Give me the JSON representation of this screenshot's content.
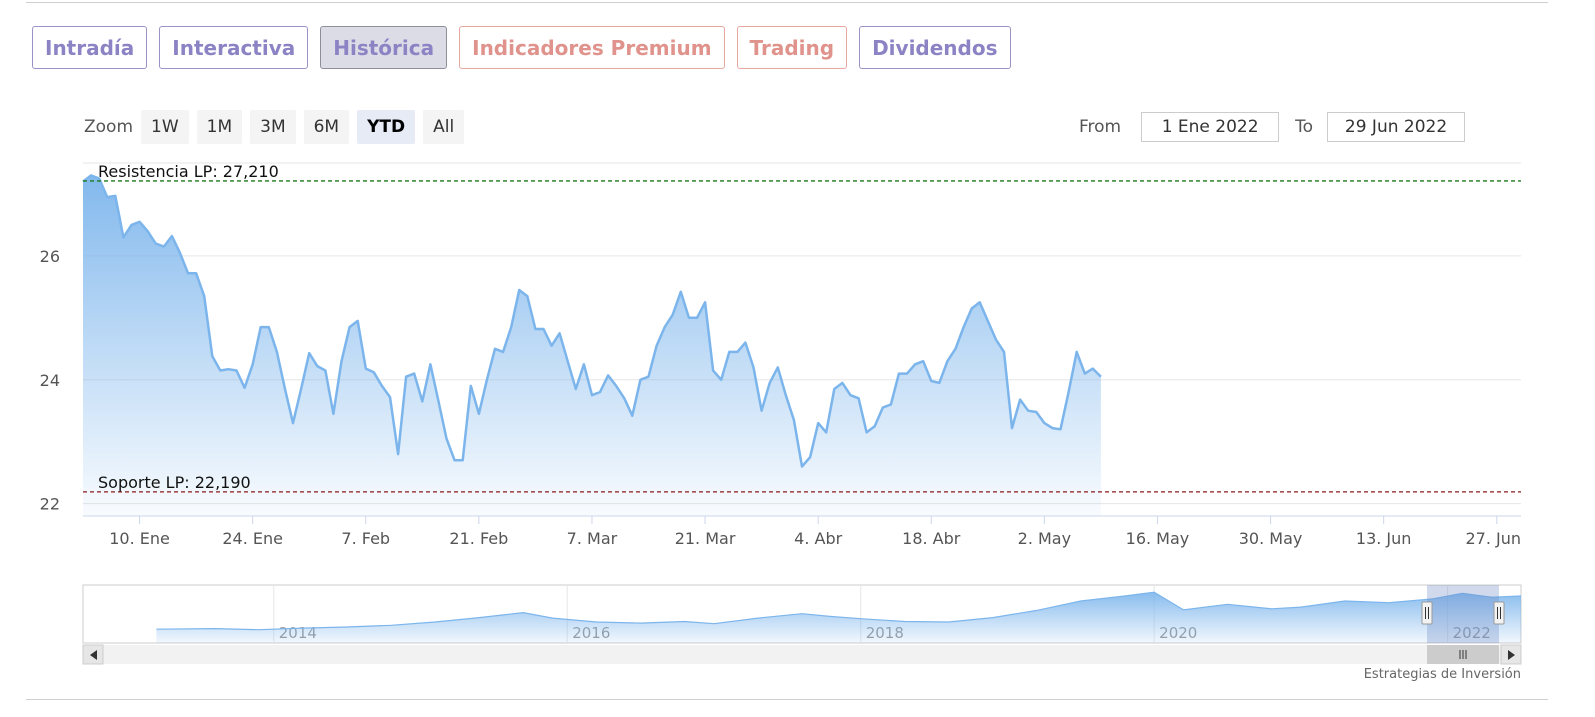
{
  "tabs": [
    {
      "label": "Intradía",
      "color": "purple",
      "active": false
    },
    {
      "label": "Interactiva",
      "color": "purple",
      "active": false
    },
    {
      "label": "Histórica",
      "color": "purple",
      "active": true
    },
    {
      "label": "Indicadores Premium",
      "color": "salmon",
      "active": false
    },
    {
      "label": "Trading",
      "color": "salmon",
      "active": false
    },
    {
      "label": "Dividendos",
      "color": "purple",
      "active": false
    }
  ],
  "zoom": {
    "label": "Zoom",
    "buttons": [
      "1W",
      "1M",
      "3M",
      "6M",
      "YTD",
      "All"
    ],
    "active": "YTD"
  },
  "range": {
    "from_label": "From",
    "from_value": "1 Ene 2022",
    "to_label": "To",
    "to_value": "29 Jun 2022"
  },
  "credit": "Estrategias de Inversión",
  "colors": {
    "line": "#7cb5ec",
    "resistance": "#1a7a1a",
    "support": "#8b1a1a",
    "tab_purple": "#8b83c4",
    "tab_salmon": "#e0938c"
  },
  "chart_data": {
    "type": "area",
    "title": "",
    "ylim": [
      21.8,
      27.5
    ],
    "yticks": [
      22,
      24,
      26
    ],
    "xticks": [
      {
        "x": 9,
        "label": "10. Ene"
      },
      {
        "x": 23,
        "label": "24. Ene"
      },
      {
        "x": 37,
        "label": "7. Feb"
      },
      {
        "x": 51,
        "label": "21. Feb"
      },
      {
        "x": 65,
        "label": "7. Mar"
      },
      {
        "x": 79,
        "label": "21. Mar"
      },
      {
        "x": 93,
        "label": "4. Abr"
      },
      {
        "x": 107,
        "label": "18. Abr"
      },
      {
        "x": 121,
        "label": "2. May"
      },
      {
        "x": 135,
        "label": "16. May"
      },
      {
        "x": 149,
        "label": "30. May"
      },
      {
        "x": 163,
        "label": "13. Jun"
      },
      {
        "x": 177,
        "label": "27. Jun"
      }
    ],
    "x_domain": [
      2,
      180
    ],
    "series": [
      {
        "points": [
          [
            2,
            27.2
          ],
          [
            3,
            27.3
          ],
          [
            4,
            27.25
          ],
          [
            5,
            26.95
          ],
          [
            6,
            26.97
          ],
          [
            7,
            26.3
          ],
          [
            8,
            26.5
          ],
          [
            9,
            26.55
          ],
          [
            10,
            26.4
          ],
          [
            11,
            26.2
          ],
          [
            12,
            26.15
          ],
          [
            13,
            26.32
          ],
          [
            14,
            26.05
          ],
          [
            15,
            25.72
          ],
          [
            16,
            25.72
          ],
          [
            17,
            25.35
          ],
          [
            18,
            24.38
          ],
          [
            19,
            24.15
          ],
          [
            20,
            24.17
          ],
          [
            21,
            24.15
          ],
          [
            22,
            23.87
          ],
          [
            23,
            24.25
          ],
          [
            24,
            24.85
          ],
          [
            25,
            24.85
          ],
          [
            26,
            24.45
          ],
          [
            27,
            23.85
          ],
          [
            28,
            23.3
          ],
          [
            29,
            23.85
          ],
          [
            30,
            24.43
          ],
          [
            31,
            24.22
          ],
          [
            32,
            24.15
          ],
          [
            33,
            23.45
          ],
          [
            34,
            24.3
          ],
          [
            35,
            24.85
          ],
          [
            36,
            24.95
          ],
          [
            37,
            24.18
          ],
          [
            38,
            24.12
          ],
          [
            39,
            23.9
          ],
          [
            40,
            23.72
          ],
          [
            41,
            22.8
          ],
          [
            42,
            24.05
          ],
          [
            43,
            24.1
          ],
          [
            44,
            23.65
          ],
          [
            45,
            24.25
          ],
          [
            46,
            23.65
          ],
          [
            47,
            23.05
          ],
          [
            48,
            22.7
          ],
          [
            49,
            22.7
          ],
          [
            50,
            23.9
          ],
          [
            51,
            23.45
          ],
          [
            52,
            24.0
          ],
          [
            53,
            24.5
          ],
          [
            54,
            24.45
          ],
          [
            55,
            24.85
          ],
          [
            56,
            25.45
          ],
          [
            57,
            25.35
          ],
          [
            58,
            24.82
          ],
          [
            59,
            24.82
          ],
          [
            60,
            24.55
          ],
          [
            61,
            24.75
          ],
          [
            62,
            24.3
          ],
          [
            63,
            23.85
          ],
          [
            64,
            24.25
          ],
          [
            65,
            23.75
          ],
          [
            66,
            23.8
          ],
          [
            67,
            24.07
          ],
          [
            68,
            23.9
          ],
          [
            69,
            23.7
          ],
          [
            70,
            23.42
          ],
          [
            71,
            24.0
          ],
          [
            72,
            24.05
          ],
          [
            73,
            24.55
          ],
          [
            74,
            24.85
          ],
          [
            75,
            25.05
          ],
          [
            76,
            25.42
          ],
          [
            77,
            25.0
          ],
          [
            78,
            25.0
          ],
          [
            79,
            25.25
          ],
          [
            80,
            24.15
          ],
          [
            81,
            24.0
          ],
          [
            82,
            24.45
          ],
          [
            83,
            24.45
          ],
          [
            84,
            24.6
          ],
          [
            85,
            24.2
          ],
          [
            86,
            23.5
          ],
          [
            87,
            23.95
          ],
          [
            88,
            24.2
          ],
          [
            89,
            23.75
          ],
          [
            90,
            23.35
          ],
          [
            91,
            22.6
          ],
          [
            92,
            22.75
          ],
          [
            93,
            23.3
          ],
          [
            94,
            23.15
          ],
          [
            95,
            23.85
          ],
          [
            96,
            23.95
          ],
          [
            97,
            23.75
          ],
          [
            98,
            23.7
          ],
          [
            99,
            23.15
          ],
          [
            100,
            23.25
          ],
          [
            101,
            23.55
          ],
          [
            102,
            23.6
          ],
          [
            103,
            24.1
          ],
          [
            104,
            24.1
          ],
          [
            105,
            24.25
          ],
          [
            106,
            24.3
          ],
          [
            107,
            23.98
          ],
          [
            108,
            23.95
          ],
          [
            109,
            24.3
          ],
          [
            110,
            24.5
          ],
          [
            111,
            24.85
          ],
          [
            112,
            25.15
          ],
          [
            113,
            25.25
          ],
          [
            114,
            24.95
          ],
          [
            115,
            24.65
          ],
          [
            116,
            24.45
          ],
          [
            117,
            23.22
          ],
          [
            118,
            23.68
          ],
          [
            119,
            23.5
          ],
          [
            120,
            23.48
          ],
          [
            121,
            23.3
          ],
          [
            122,
            23.22
          ],
          [
            123,
            23.2
          ],
          [
            124,
            23.8
          ],
          [
            125,
            24.45
          ],
          [
            126,
            24.1
          ],
          [
            127,
            24.18
          ],
          [
            128,
            24.05
          ]
        ]
      }
    ],
    "resistance": {
      "label": "Resistencia LP: 27,210",
      "value": 27.21
    },
    "support": {
      "label": "Soporte LP: 22,190",
      "value": 22.19
    },
    "navigator": {
      "labels": [
        "2014",
        "2016",
        "2018",
        "2020",
        "2022"
      ],
      "series": [
        [
          2013.2,
          17.5
        ],
        [
          2013.6,
          17.6
        ],
        [
          2013.9,
          17.4
        ],
        [
          2014.2,
          17.7
        ],
        [
          2014.5,
          17.9
        ],
        [
          2014.8,
          18.2
        ],
        [
          2015.1,
          18.8
        ],
        [
          2015.4,
          19.6
        ],
        [
          2015.7,
          20.5
        ],
        [
          2015.9,
          19.5
        ],
        [
          2016.2,
          18.8
        ],
        [
          2016.5,
          18.6
        ],
        [
          2016.8,
          18.9
        ],
        [
          2017.0,
          18.5
        ],
        [
          2017.3,
          19.5
        ],
        [
          2017.6,
          20.3
        ],
        [
          2017.8,
          19.8
        ],
        [
          2018.0,
          19.4
        ],
        [
          2018.3,
          18.9
        ],
        [
          2018.6,
          18.8
        ],
        [
          2018.9,
          19.6
        ],
        [
          2019.2,
          20.9
        ],
        [
          2019.5,
          22.6
        ],
        [
          2019.8,
          23.5
        ],
        [
          2020.0,
          24.2
        ],
        [
          2020.2,
          21.0
        ],
        [
          2020.5,
          22.0
        ],
        [
          2020.8,
          21.2
        ],
        [
          2021.0,
          21.5
        ],
        [
          2021.3,
          22.6
        ],
        [
          2021.6,
          22.3
        ],
        [
          2021.9,
          23.0
        ],
        [
          2022.1,
          24.0
        ],
        [
          2022.3,
          23.3
        ],
        [
          2022.5,
          23.5
        ]
      ]
    }
  }
}
